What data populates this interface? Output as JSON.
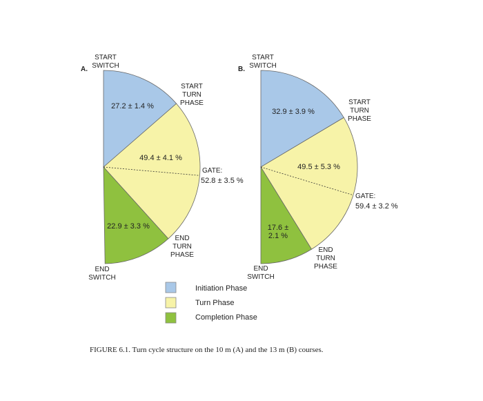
{
  "chart_data": [
    {
      "type": "pie",
      "title": "A.",
      "values": [
        27.2,
        49.4,
        22.9
      ],
      "value_labels": [
        "27.2 ± 1.4 %",
        "49.4 ± 4.1 %",
        "22.9 ± 3.3 %"
      ],
      "gate": {
        "label": "GATE:",
        "value": 52.8,
        "value_label": "52.8 ± 3.5 %"
      },
      "annotations": [
        "START\nSWITCH",
        "START\nTURN\nPHASE",
        "END\nTURN\nPHASE",
        "END\nSWITCH"
      ]
    },
    {
      "type": "pie",
      "title": "B.",
      "values": [
        32.9,
        49.5,
        17.6
      ],
      "value_labels": [
        "32.9 ± 3.9 %",
        "49.5 ± 5.3 %",
        "17.6 ±\n2.1 %"
      ],
      "gate": {
        "label": "GATE:",
        "value": 59.4,
        "value_label": "59.4 ± 3.2 %"
      },
      "annotations": [
        "START\nSWITCH",
        "START\nTURN\nPHASE",
        "END\nTURN\nPHASE",
        "END\nSWITCH"
      ]
    }
  ],
  "legend": {
    "categories": [
      "Initiation Phase",
      "Turn Phase",
      "Completion Phase"
    ],
    "colors": [
      "#a9c8e8",
      "#f7f3a8",
      "#8fc13f"
    ]
  },
  "caption": "FIGURE 6.1.  Turn cycle structure on the 10 m (A) and the 13 m (B) courses."
}
